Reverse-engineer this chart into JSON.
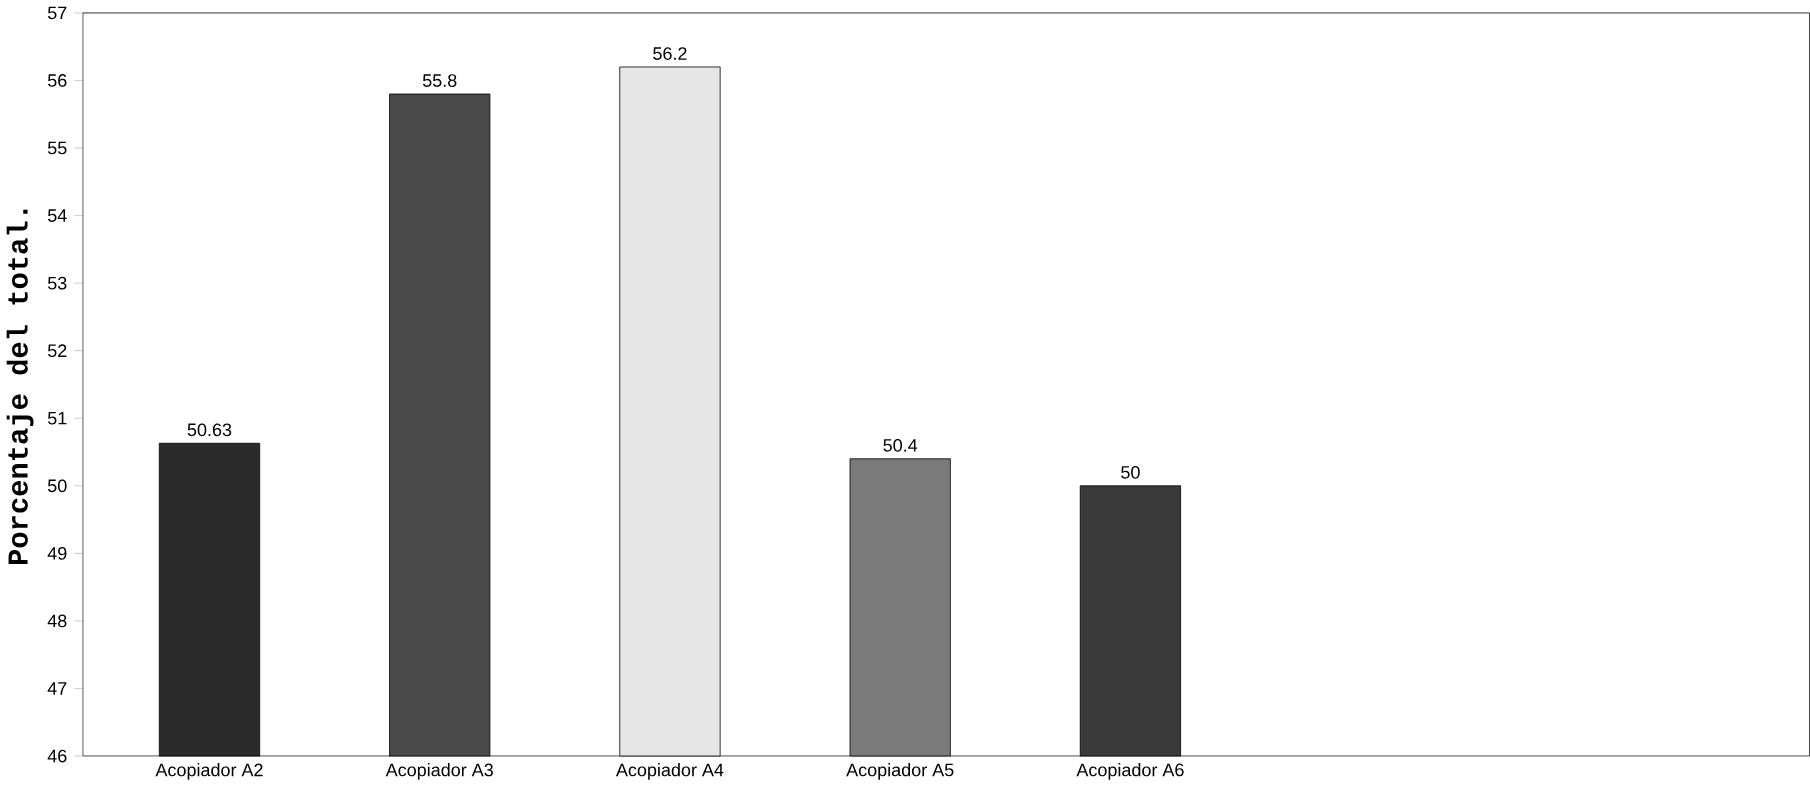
{
  "chart_data": {
    "type": "bar",
    "ylabel": "Porcentaje del total.",
    "categories": [
      "Acopiador   A2",
      "Acopiador   A3",
      "Acopiador   A4",
      "Acopiador   A5",
      "Acopiador   A6"
    ],
    "values": [
      50.63,
      55.8,
      56.2,
      50.4,
      50
    ],
    "value_labels": [
      "50.63",
      "55.8",
      "56.2",
      "50.4",
      "50"
    ],
    "colors": [
      "#2b2b2b",
      "#4a4a4a",
      "#e6e6e6",
      "#7a7a7a",
      "#3a3a3a"
    ],
    "ylim": [
      46,
      57
    ],
    "yticks": [
      46,
      47,
      48,
      49,
      50,
      51,
      52,
      53,
      54,
      55,
      56,
      57
    ]
  }
}
